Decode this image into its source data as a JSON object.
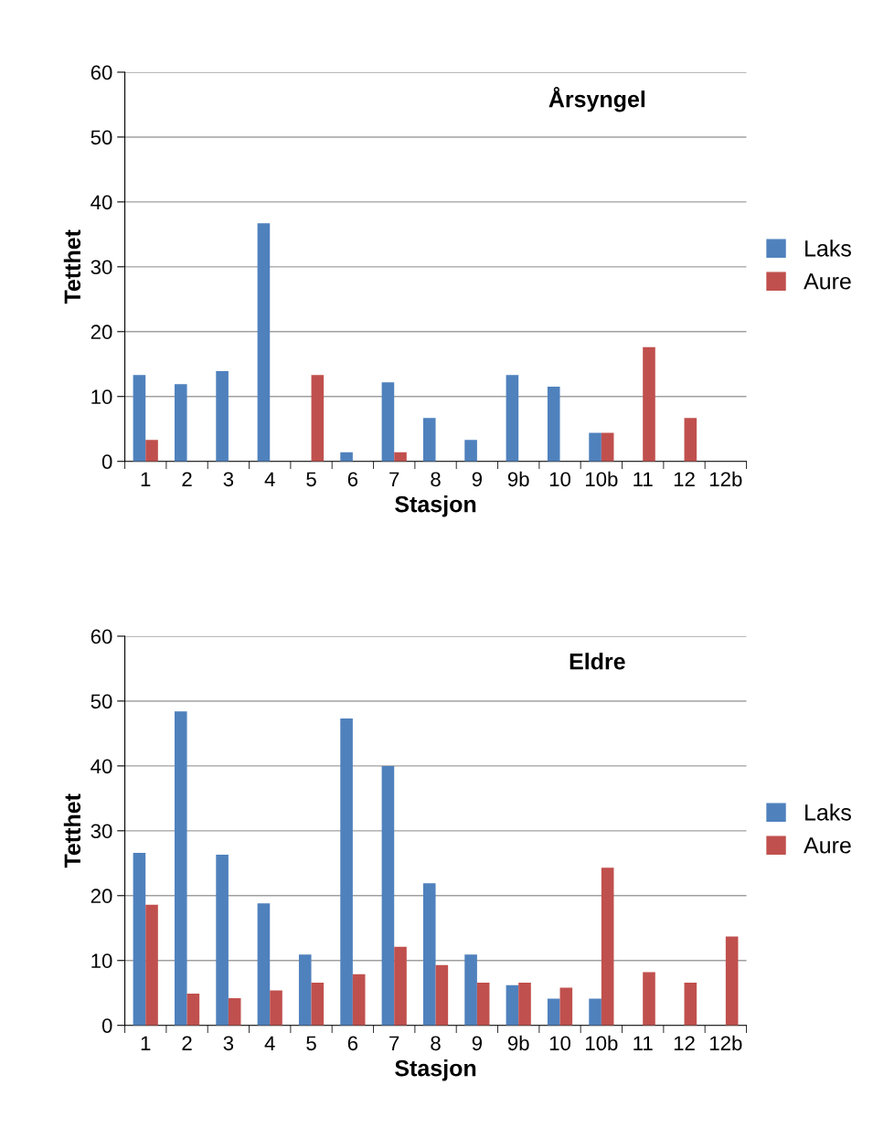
{
  "chart_data": [
    {
      "type": "bar",
      "title": "Årsyngel",
      "xlabel": "Stasjon",
      "ylabel": "Tetthet",
      "categories": [
        "1",
        "2",
        "3",
        "4",
        "5",
        "6",
        "7",
        "8",
        "9",
        "9b",
        "10",
        "10b",
        "11",
        "12",
        "12b"
      ],
      "series": [
        {
          "name": "Laks",
          "color": "#4f81bd",
          "values": [
            13.3,
            11.9,
            13.9,
            36.7,
            0,
            1.4,
            12.2,
            6.7,
            3.3,
            13.3,
            11.5,
            4.4,
            0,
            0,
            0
          ]
        },
        {
          "name": "Aure",
          "color": "#c0504d",
          "values": [
            3.3,
            0,
            0,
            0,
            13.3,
            0,
            1.4,
            0,
            0,
            0,
            0,
            4.4,
            17.6,
            6.7,
            0
          ]
        }
      ],
      "ylim": [
        0,
        60
      ],
      "yticks": [
        0,
        10,
        20,
        30,
        40,
        50,
        60
      ],
      "grid": "y",
      "legend": "right"
    },
    {
      "type": "bar",
      "title": "Eldre",
      "xlabel": "Stasjon",
      "ylabel": "Tetthet",
      "categories": [
        "1",
        "2",
        "3",
        "4",
        "5",
        "6",
        "7",
        "8",
        "9",
        "9b",
        "10",
        "10b",
        "11",
        "12",
        "12b"
      ],
      "series": [
        {
          "name": "Laks",
          "color": "#4f81bd",
          "values": [
            26.6,
            48.4,
            26.3,
            18.8,
            10.9,
            47.3,
            40.0,
            21.9,
            10.9,
            6.2,
            4.1,
            4.1,
            0,
            0,
            0
          ]
        },
        {
          "name": "Aure",
          "color": "#c0504d",
          "values": [
            18.6,
            4.9,
            4.2,
            5.4,
            6.6,
            7.9,
            12.1,
            9.3,
            6.6,
            6.6,
            5.8,
            24.3,
            8.2,
            6.6,
            13.7
          ]
        }
      ],
      "ylim": [
        0,
        60
      ],
      "yticks": [
        0,
        10,
        20,
        30,
        40,
        50,
        60
      ],
      "grid": "y",
      "legend": "right"
    }
  ]
}
